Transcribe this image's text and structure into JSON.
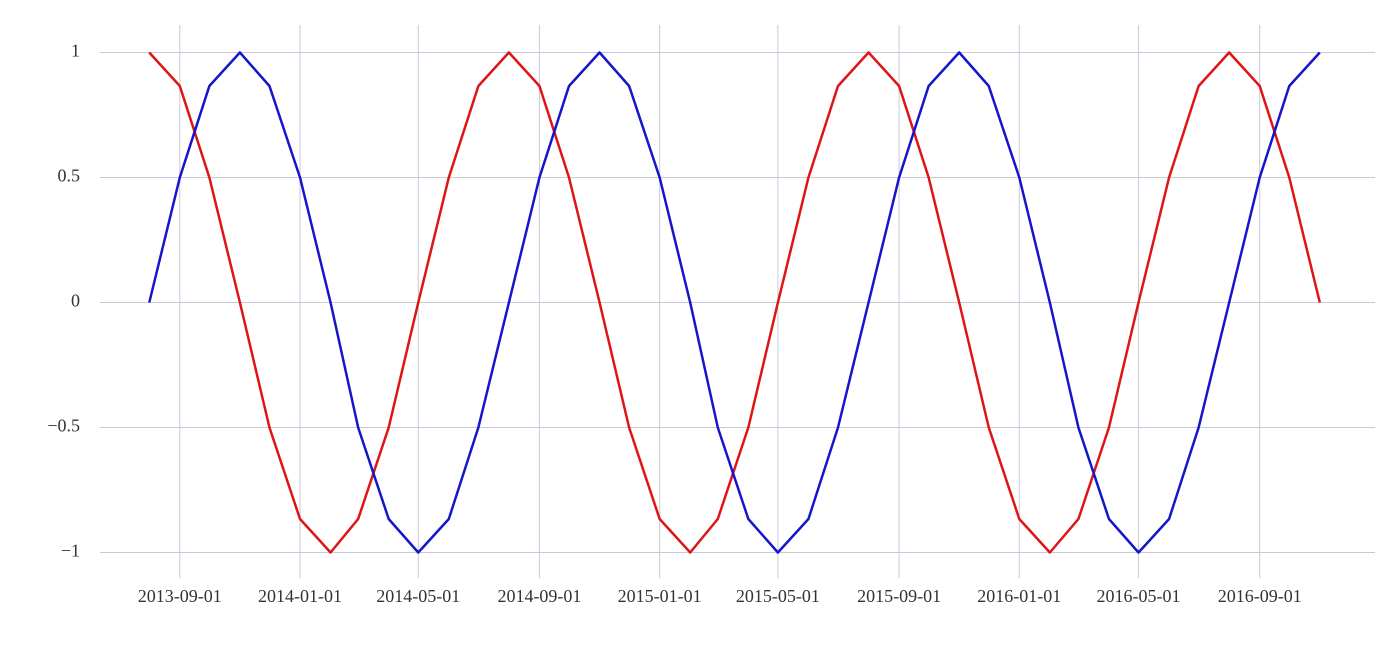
{
  "chart_data": {
    "type": "line",
    "x": [
      "2013-08-01",
      "2013-09-01",
      "2013-10-01",
      "2013-11-01",
      "2013-12-01",
      "2014-01-01",
      "2014-02-01",
      "2014-03-01",
      "2014-04-01",
      "2014-05-01",
      "2014-06-01",
      "2014-07-01",
      "2014-08-01",
      "2014-09-01",
      "2014-10-01",
      "2014-11-01",
      "2014-12-01",
      "2015-01-01",
      "2015-02-01",
      "2015-03-01",
      "2015-04-01",
      "2015-05-01",
      "2015-06-01",
      "2015-07-01",
      "2015-08-01",
      "2015-09-01",
      "2015-10-01",
      "2015-11-01",
      "2015-12-01",
      "2016-01-01",
      "2016-02-01",
      "2016-03-01",
      "2016-04-01",
      "2016-05-01",
      "2016-06-01",
      "2016-07-01",
      "2016-08-01",
      "2016-09-01",
      "2016-10-01",
      "2016-11-01"
    ],
    "series": [
      {
        "color": "#dd1515",
        "values": [
          1,
          0.866,
          0.5,
          0,
          -0.5,
          -0.866,
          -1,
          -0.866,
          -0.5,
          0,
          0.5,
          0.866,
          1,
          0.866,
          0.5,
          0,
          -0.5,
          -0.866,
          -1,
          -0.866,
          -0.5,
          0,
          0.5,
          0.866,
          1,
          0.866,
          0.5,
          0,
          -0.5,
          -0.866,
          -1,
          -0.866,
          -0.5,
          0,
          0.5,
          0.866,
          1,
          0.866,
          0.5,
          0
        ]
      },
      {
        "color": "#1515cc",
        "values": [
          0,
          0.5,
          0.866,
          1,
          0.866,
          0.5,
          0,
          -0.5,
          -0.866,
          -1,
          -0.866,
          -0.5,
          0,
          0.5,
          0.866,
          1,
          0.866,
          0.5,
          0,
          -0.5,
          -0.866,
          -1,
          -0.866,
          -0.5,
          0,
          0.5,
          0.866,
          1,
          0.866,
          0.5,
          0,
          -0.5,
          -0.866,
          -1,
          -0.866,
          -0.5,
          0,
          0.5,
          0.866,
          1
        ]
      }
    ],
    "xlim": [
      "2013-06-12",
      "2016-12-27"
    ],
    "xticks": [
      "2013-09-01",
      "2014-01-01",
      "2014-05-01",
      "2014-09-01",
      "2015-01-01",
      "2015-05-01",
      "2015-09-01",
      "2016-01-01",
      "2016-05-01",
      "2016-09-01"
    ],
    "ylim": [
      -1.05,
      1.05
    ],
    "yticks": [
      {
        "value": -1,
        "label": "−1"
      },
      {
        "value": -0.5,
        "label": "−0.5"
      },
      0,
      0.5,
      1
    ],
    "grid": true
  }
}
